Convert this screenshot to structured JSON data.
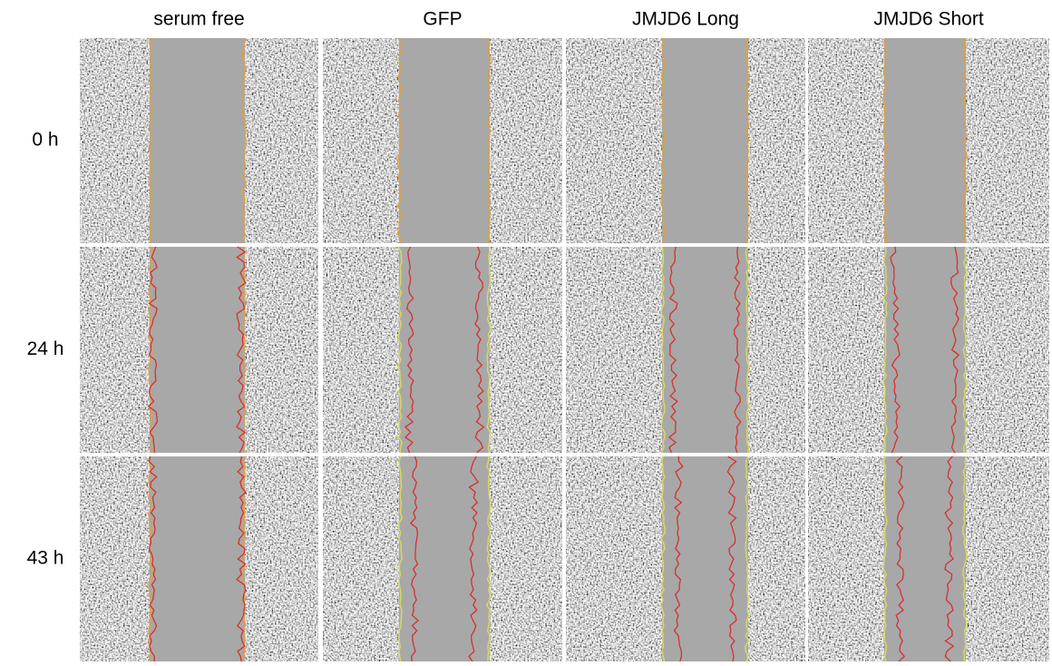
{
  "columns": [
    "serum free",
    "GFP",
    "JMJD6 Long",
    "JMJD6 Short"
  ],
  "rows": [
    "0 h",
    "24 h",
    "43 h"
  ]
}
